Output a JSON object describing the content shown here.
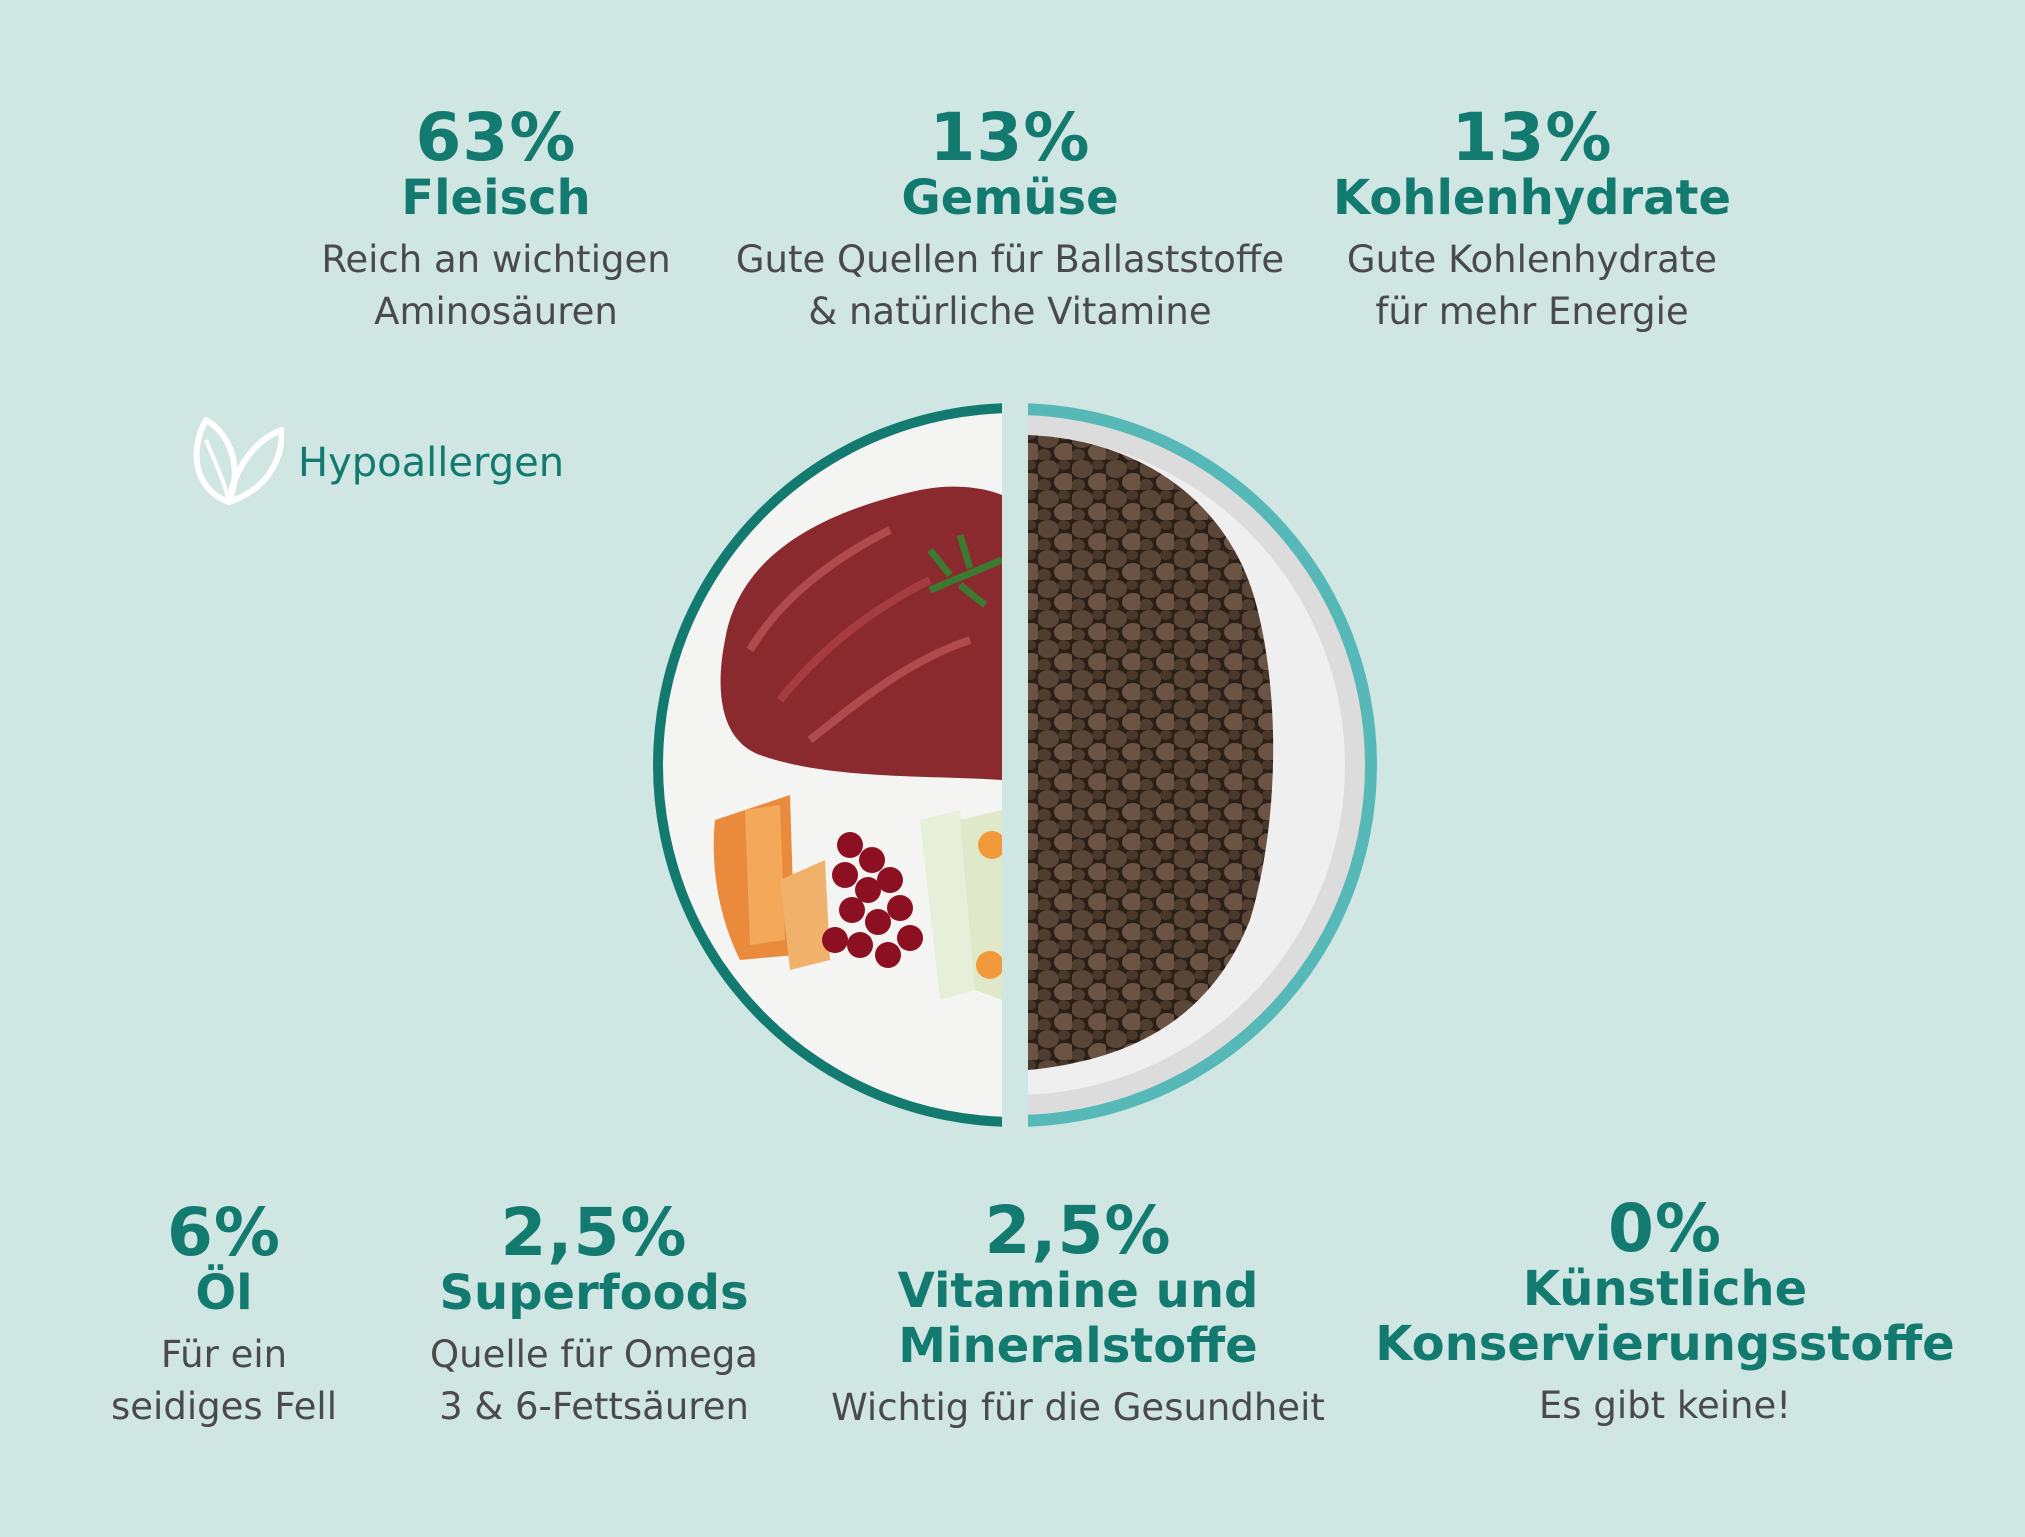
{
  "top": [
    {
      "pct": "63%",
      "title": "Fleisch",
      "desc1": "Reich an wichtigen",
      "desc2": "Aminosäuren"
    },
    {
      "pct": "13%",
      "title": "Gemüse",
      "desc1": "Gute Quellen für Ballaststoffe",
      "desc2": "& natürliche Vitamine"
    },
    {
      "pct": "13%",
      "title": "Kohlenhydrate",
      "desc1": "Gute Kohlenhydrate",
      "desc2": "für mehr Energie"
    }
  ],
  "badge": {
    "icon": "leaf-icon",
    "label": "Hypoallergen"
  },
  "bottom": [
    {
      "pct": "6%",
      "title": "Öl",
      "desc1": "Für ein",
      "desc2": "seidiges Fell"
    },
    {
      "pct": "2,5%",
      "title": "Superfoods",
      "desc1": "Quelle für Omega",
      "desc2": "3 & 6-Fettsäuren"
    },
    {
      "pct": "2,5%",
      "title1": "Vitamine und",
      "title2": "Mineralstoffe",
      "desc1": "Wichtig für die Gesundheit"
    },
    {
      "pct": "0%",
      "title1": "Künstliche",
      "title2": "Konservierungsstoffe",
      "desc1": "Es gibt keine!"
    }
  ],
  "colors": {
    "background": "#cfe6e3",
    "accent": "#137a6f",
    "text": "#4a4a4a"
  }
}
